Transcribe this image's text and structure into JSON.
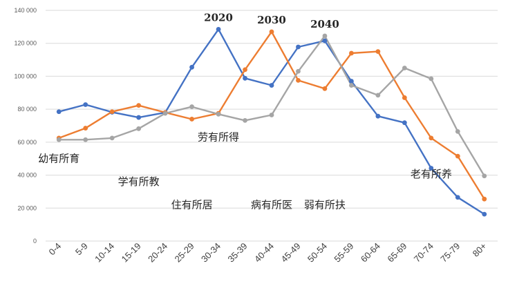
{
  "chart_data": {
    "type": "line",
    "title": "",
    "xlabel": "",
    "ylabel": "",
    "ylim": [
      0,
      140000
    ],
    "grid": "horizontal",
    "y_ticks": [
      {
        "value": 0,
        "label": "0"
      },
      {
        "value": 20000,
        "label": "20 000"
      },
      {
        "value": 40000,
        "label": "40 000"
      },
      {
        "value": 60000,
        "label": "60 000"
      },
      {
        "value": 80000,
        "label": "80 000"
      },
      {
        "value": 100000,
        "label": "100 000"
      },
      {
        "value": 120000,
        "label": "120 000"
      },
      {
        "value": 140000,
        "label": "140 000"
      }
    ],
    "categories": [
      "0-4",
      "5-9",
      "10-14",
      "15-19",
      "20-24",
      "25-29",
      "30-34",
      "35-39",
      "40-44",
      "45-49",
      "50-54",
      "55-59",
      "60-64",
      "65-69",
      "70-74",
      "75-79",
      "80+"
    ],
    "series": [
      {
        "name": "2020",
        "color": "#4472c4",
        "values": [
          78500,
          82800,
          78200,
          75000,
          78000,
          105500,
          128500,
          98800,
          94500,
          117800,
          121500,
          97000,
          75800,
          71800,
          44200,
          26500,
          16300
        ]
      },
      {
        "name": "2030",
        "color": "#ed7d31",
        "values": [
          62500,
          68500,
          78500,
          82300,
          78000,
          74000,
          77500,
          104000,
          127000,
          97500,
          92500,
          114000,
          115000,
          87000,
          62500,
          51500,
          25500
        ]
      },
      {
        "name": "2040",
        "color": "#a5a5a5",
        "values": [
          61500,
          61500,
          62500,
          68200,
          77500,
          81500,
          77000,
          73200,
          76500,
          103000,
          124500,
          94500,
          88500,
          105000,
          98500,
          66500,
          39500
        ]
      }
    ],
    "series_labels": [
      {
        "series": "2020",
        "text": "2020",
        "at_category": "30-34"
      },
      {
        "series": "2030",
        "text": "2030",
        "at_category": "40-44"
      },
      {
        "series": "2040",
        "text": "2040",
        "at_category": "50-54"
      }
    ],
    "annotations": [
      {
        "text": "幼有所育",
        "near_category": "0-4",
        "level": 48000
      },
      {
        "text": "学有所教",
        "near_category": "15-19",
        "level": 34000
      },
      {
        "text": "劳有所得",
        "near_category": "30-34",
        "level": 61000
      },
      {
        "text": "住有所居",
        "near_category": "25-29",
        "level": 20000
      },
      {
        "text": "病有所医",
        "near_category": "40-44",
        "level": 20000
      },
      {
        "text": "弱有所扶",
        "near_category": "50-54",
        "level": 20000
      },
      {
        "text": "老有所养",
        "near_category": "70-74",
        "level": 38500
      }
    ]
  }
}
